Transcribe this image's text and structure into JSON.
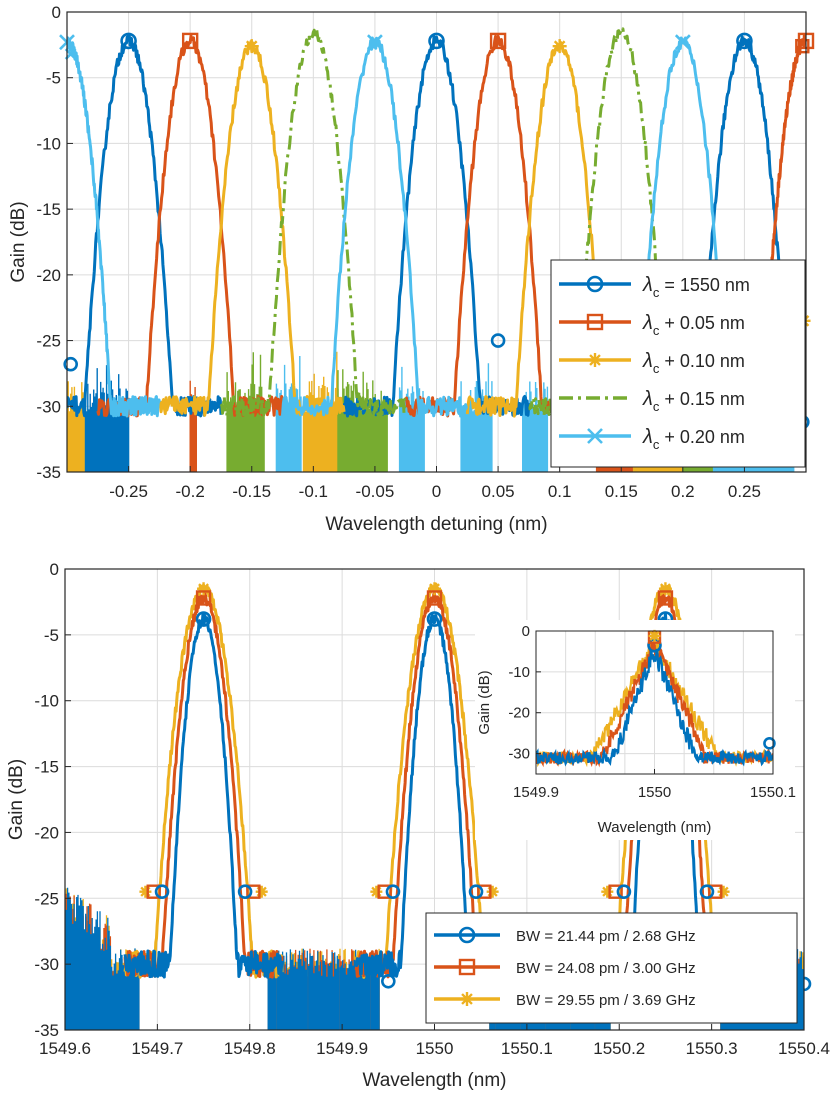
{
  "chart_data": [
    {
      "type": "line",
      "title": "",
      "xlabel": "Wavelength detuning (nm)",
      "ylabel": "Gain (dB)",
      "xlim": [
        -0.3,
        0.3
      ],
      "ylim": [
        -35,
        0
      ],
      "xticks": [
        -0.25,
        -0.2,
        -0.15,
        -0.1,
        -0.05,
        0,
        0.05,
        0.1,
        0.15,
        0.2,
        0.25
      ],
      "xtick_labels": [
        "-0.25",
        "-0.2",
        "-0.15",
        "-0.1",
        "-0.05",
        "0",
        "0.05",
        "0.1",
        "0.15",
        "0.2",
        "0.25"
      ],
      "yticks": [
        0,
        -5,
        -10,
        -15,
        -20,
        -25,
        -30,
        -35
      ],
      "ytick_labels": [
        "0",
        "-5",
        "-10",
        "-15",
        "-20",
        "-25",
        "-30",
        "-35"
      ],
      "grid": true,
      "legend_position": "right",
      "noise_floor_db": -29,
      "series": [
        {
          "legend_symbol": "λ",
          "legend_subscript": "c",
          "legend_suffix": " = 1550 nm",
          "color": "#0072BD",
          "marker": "circle",
          "dash": "solid",
          "peak_centers": [
            -0.25,
            0,
            0.25
          ],
          "peak_db": -2.2,
          "half_width_nm": 0.043
        },
        {
          "legend_symbol": "λ",
          "legend_subscript": "c",
          "legend_suffix": " + 0.05 nm",
          "color": "#D95319",
          "marker": "square",
          "dash": "solid",
          "peak_centers": [
            -0.2,
            0.05,
            0.3
          ],
          "peak_db": -2.2,
          "half_width_nm": 0.043
        },
        {
          "legend_symbol": "λ",
          "legend_subscript": "c",
          "legend_suffix": " + 0.10 nm",
          "color": "#EDB120",
          "marker": "asterisk",
          "dash": "solid",
          "peak_centers": [
            -0.15,
            0.1
          ],
          "peak_db": -2.6,
          "half_width_nm": 0.043
        },
        {
          "legend_symbol": "λ",
          "legend_subscript": "c",
          "legend_suffix": " + 0.15 nm",
          "color": "#77AC30",
          "marker": "none",
          "dash": "dashdot",
          "peak_centers": [
            -0.1,
            0.15
          ],
          "peak_db": -1.6,
          "half_width_nm": 0.043
        },
        {
          "legend_symbol": "λ",
          "legend_subscript": "c",
          "legend_suffix": " + 0.20 nm",
          "color": "#4DBEEE",
          "marker": "x",
          "dash": "solid",
          "peak_centers": [
            -0.3,
            -0.05,
            0.2
          ],
          "peak_db": -2.3,
          "half_width_nm": 0.043
        }
      ]
    },
    {
      "type": "line",
      "title": "",
      "xlabel": "Wavelength (nm)",
      "ylabel": "Gain (dB)",
      "xlim": [
        1549.6,
        1550.4
      ],
      "ylim": [
        -35,
        0
      ],
      "xticks": [
        1549.6,
        1549.7,
        1549.8,
        1549.9,
        1550,
        1550.1,
        1550.2,
        1550.3,
        1550.4
      ],
      "xtick_labels": [
        "1549.6",
        "1549.7",
        "1549.8",
        "1549.9",
        "1550",
        "1550.1",
        "1550.2",
        "1550.3",
        "1550.4"
      ],
      "yticks": [
        0,
        -5,
        -10,
        -15,
        -20,
        -25,
        -30,
        -35
      ],
      "ytick_labels": [
        "0",
        "-5",
        "-10",
        "-15",
        "-20",
        "-25",
        "-30",
        "-35"
      ],
      "grid": true,
      "legend_position": "bottom-right",
      "peak_centers": [
        1549.75,
        1550.0,
        1550.25
      ],
      "series": [
        {
          "name": "BW = 21.44 pm / 2.68 GHz",
          "color": "#0072BD",
          "marker": "circle",
          "peak_db": -3.8,
          "half_width_nm": 0.03
        },
        {
          "name": "BW = 24.08 pm / 3.00 GHz",
          "color": "#D95319",
          "marker": "square",
          "peak_db": -2.2,
          "half_width_nm": 0.036
        },
        {
          "name": "BW = 29.55 pm / 3.69 GHz",
          "color": "#EDB120",
          "marker": "asterisk",
          "peak_db": -1.5,
          "half_width_nm": 0.042
        }
      ],
      "inset": {
        "xlabel": "Wavelength (nm)",
        "ylabel": "Gain (dB)",
        "xlim": [
          1549.9,
          1550.1
        ],
        "ylim": [
          -35,
          0
        ],
        "xticks": [
          1549.9,
          1550,
          1550.1
        ],
        "xtick_labels": [
          "1549.9",
          "1550",
          "1550.1"
        ],
        "yticks": [
          0,
          -10,
          -20,
          -30
        ],
        "ytick_labels": [
          "0",
          "-10",
          "-20",
          "-30"
        ]
      }
    }
  ]
}
